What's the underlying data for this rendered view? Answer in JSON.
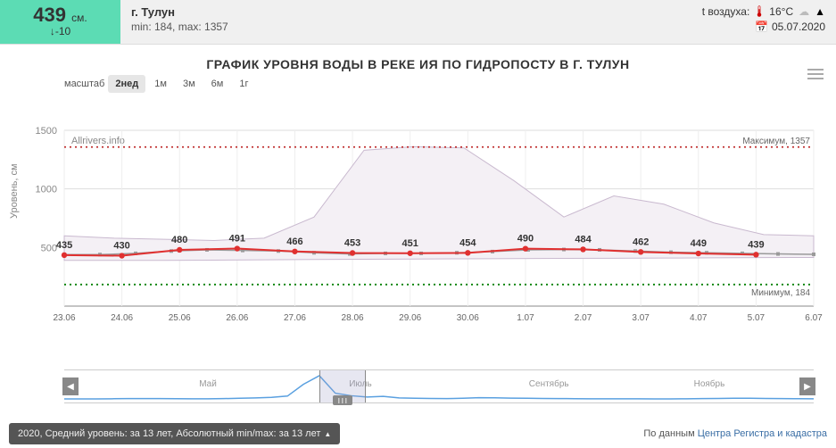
{
  "header": {
    "level": "439",
    "level_unit": "см.",
    "level_delta": "-10",
    "city": "г. Тулун",
    "minmax": "min: 184, max: 1357",
    "temp_label": "t воздуха:",
    "temp_value": "16°C",
    "date": "05.07.2020"
  },
  "chart": {
    "title": "ГРАФИК УРОВНЯ ВОДЫ В РЕКЕ ИЯ ПО ГИДРОПОСТУ В Г. ТУЛУН",
    "watermark": "Allrivers.info",
    "yaxis_label": "Уровень, см",
    "yaxis": {
      "min": 0,
      "max": 1500,
      "ticks": [
        500,
        1000,
        1500
      ],
      "grid_color": "#dddddd"
    },
    "xaxis": {
      "labels": [
        "23.06",
        "24.06",
        "25.06",
        "26.06",
        "27.06",
        "28.06",
        "29.06",
        "30.06",
        "1.07",
        "2.07",
        "3.07",
        "4.07",
        "5.07",
        "6.07"
      ]
    },
    "ref_lines": {
      "max": {
        "value": 1357,
        "label": "Максимум, 1357",
        "color": "#c03030"
      },
      "min": {
        "value": 184,
        "label": "Минимум, 184",
        "color": "#008000"
      }
    },
    "band": {
      "upper": [
        600,
        580,
        570,
        560,
        580,
        760,
        1330,
        1360,
        1350,
        1070,
        760,
        940,
        870,
        710,
        610,
        600
      ],
      "lower": [
        390,
        390,
        390,
        392,
        395,
        398,
        400,
        402,
        404,
        405,
        407,
        408,
        410,
        412,
        414,
        415
      ],
      "fill": "#f4f0f5",
      "stroke": "#c9b9cf"
    },
    "series_gray": {
      "values": [
        440,
        440,
        450,
        470,
        480,
        475,
        470,
        455,
        445,
        450,
        450,
        455,
        465,
        480,
        483,
        480,
        470,
        460,
        455,
        450,
        445,
        442
      ],
      "color": "#9a9a9a"
    },
    "series_main": {
      "values": [
        435,
        430,
        480,
        491,
        466,
        453,
        451,
        454,
        490,
        484,
        462,
        449,
        439
      ],
      "labels": [
        "435",
        "430",
        "480",
        "491",
        "466",
        "453",
        "451",
        "454",
        "490",
        "484",
        "462",
        "449",
        "439"
      ],
      "color": "#e03030",
      "label_color": "#333333"
    },
    "scale": {
      "label": "масштаб",
      "options": [
        "2нед",
        "1м",
        "3м",
        "6м",
        "1г"
      ],
      "selected": 0
    }
  },
  "nav": {
    "months": [
      "Май",
      "Июль",
      "Сентябрь",
      "Ноябрь"
    ],
    "window": {
      "left_pct": 34,
      "width_pct": 6
    },
    "spark": [
      420,
      420,
      420,
      425,
      430,
      430,
      430,
      428,
      425,
      425,
      430,
      440,
      450,
      470,
      510,
      880,
      1150,
      600,
      520,
      480,
      500,
      450,
      440,
      435,
      430,
      440,
      460,
      455,
      445,
      440,
      435,
      430,
      428,
      425,
      425,
      422,
      422,
      420,
      420,
      425,
      430,
      435,
      440,
      440,
      435,
      430,
      428,
      425
    ],
    "spark_color": "#5aa0e0"
  },
  "bottom": {
    "button": "2020, Средний уровень: за 13 лет, Абсолютный min/max: за 13 лет",
    "credit_prefix": "По данным ",
    "credit_link": "Центра Регистра и кадастра"
  },
  "colors": {
    "bg": "#ffffff"
  }
}
